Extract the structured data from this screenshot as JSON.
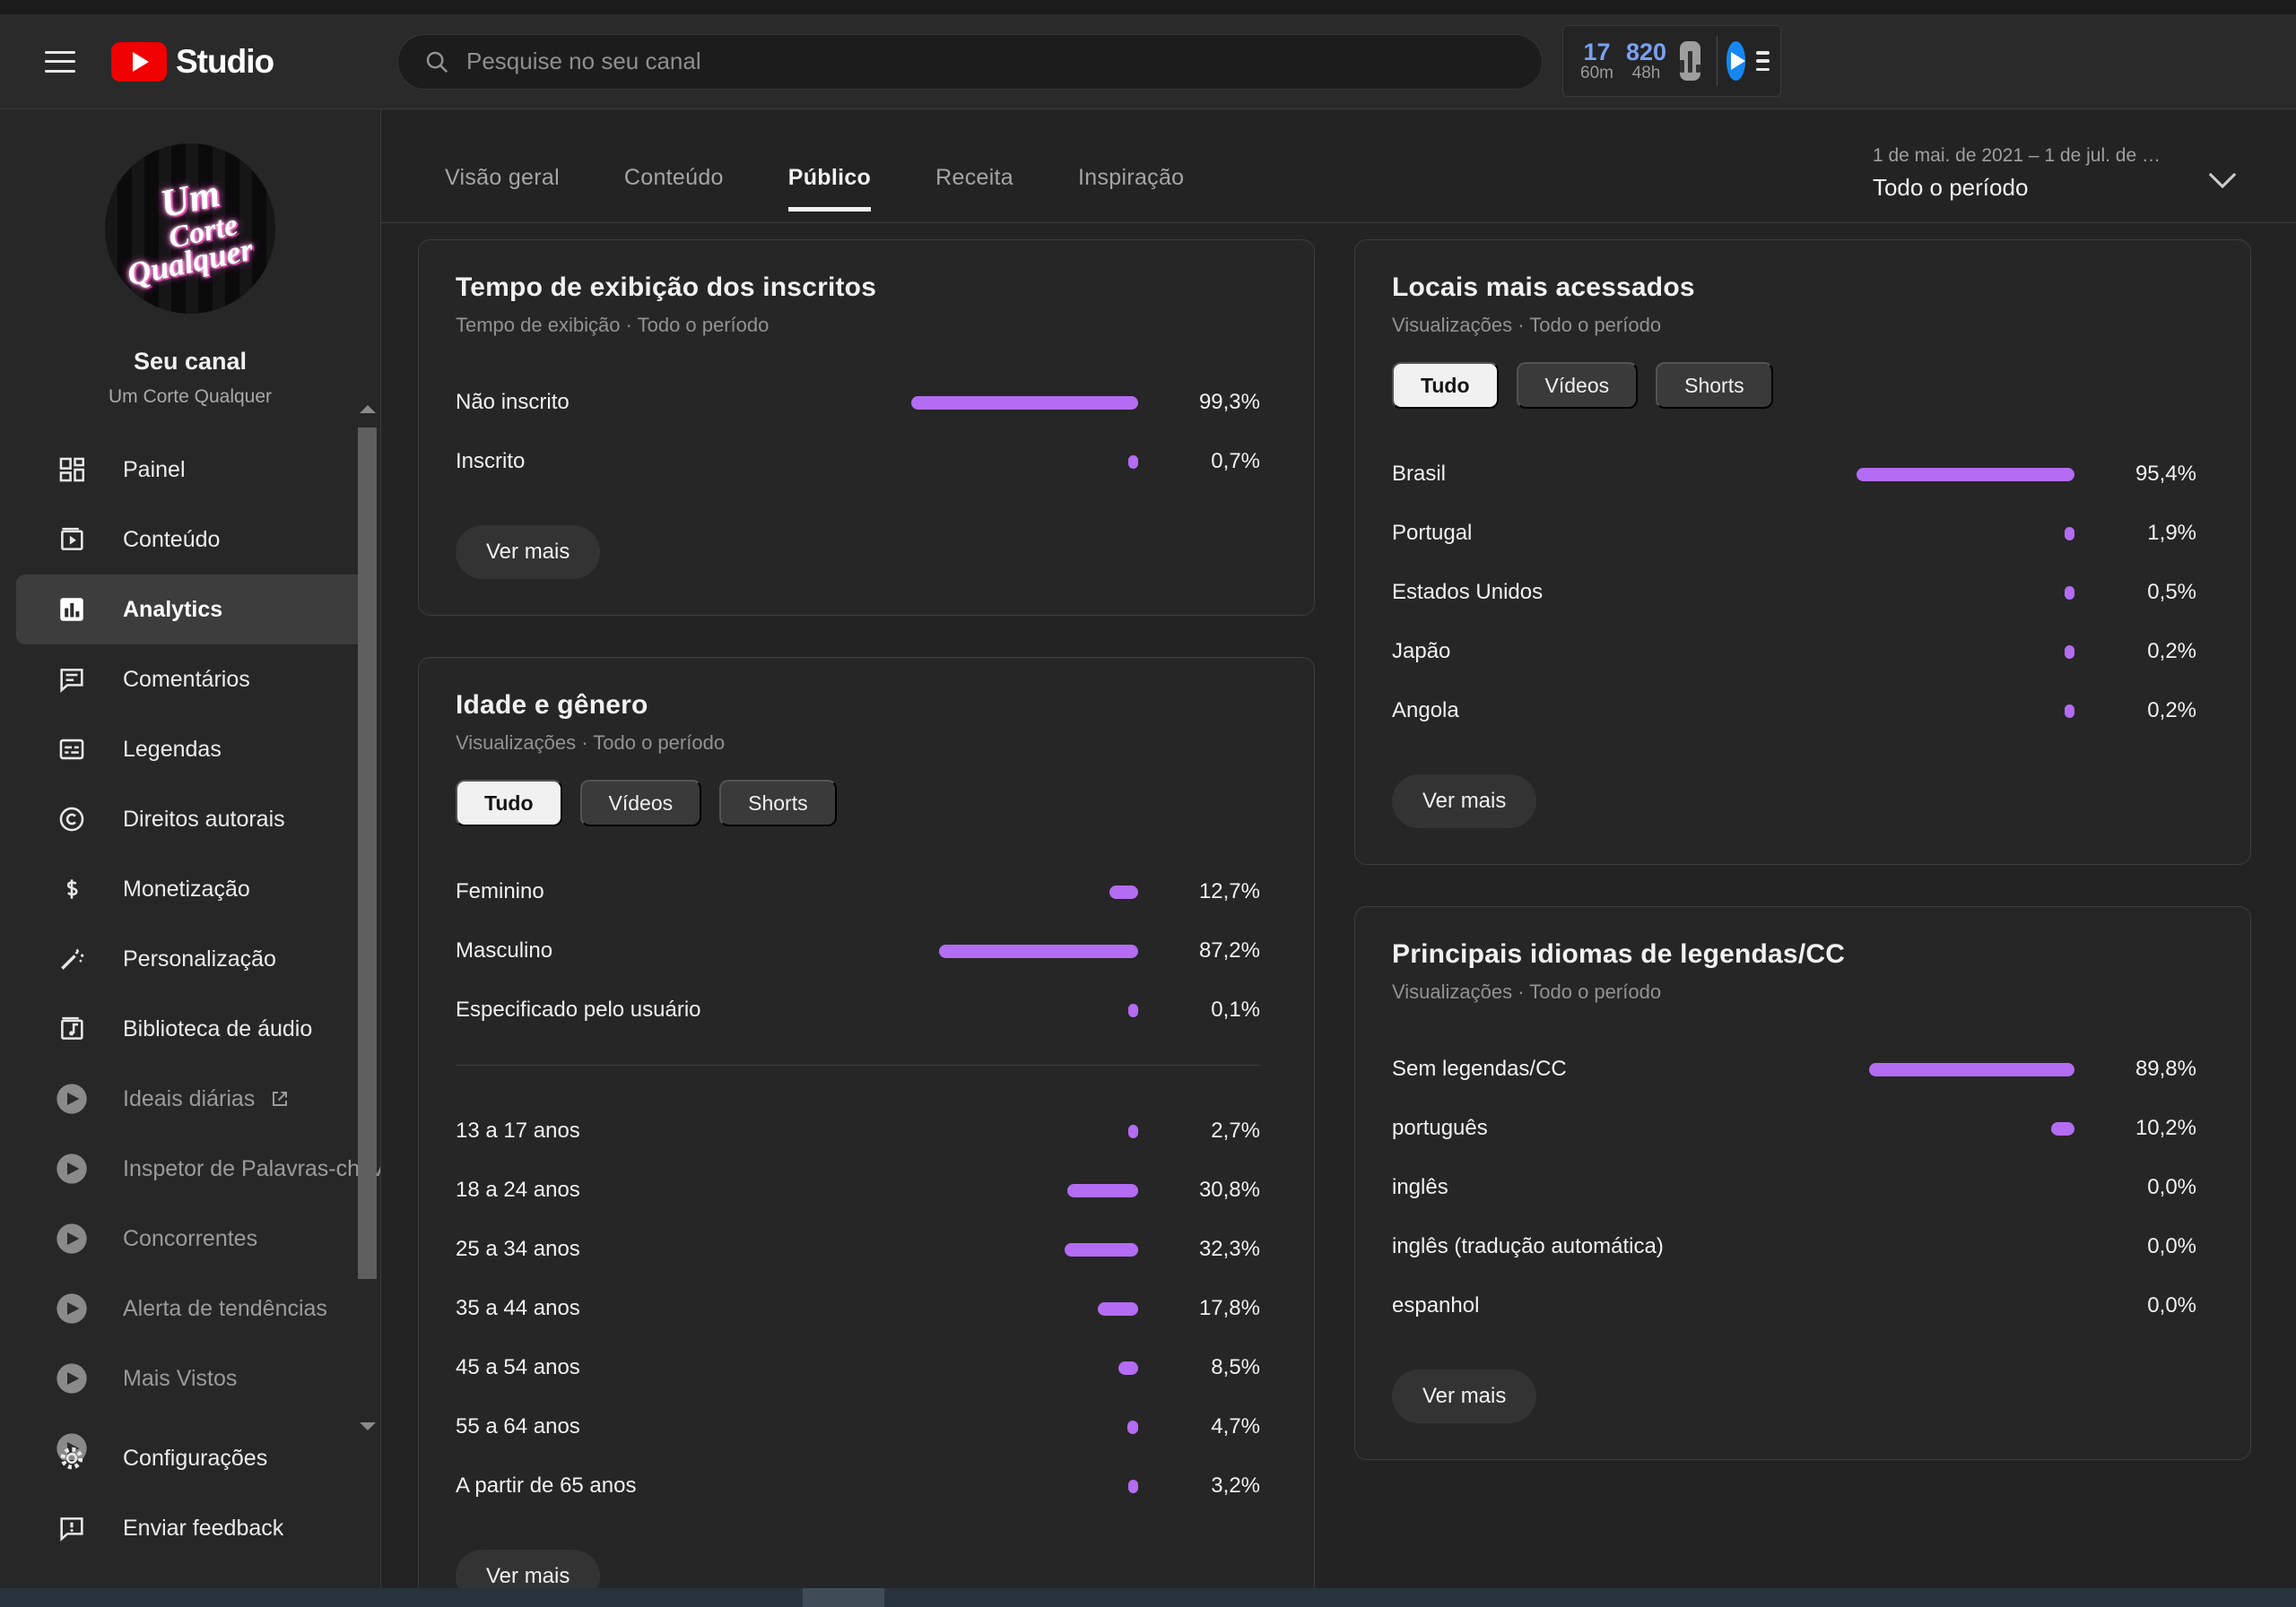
{
  "topbar": {
    "product_name": "Studio",
    "search": {
      "placeholder": "Pesquise no seu canal"
    },
    "vidiq_widget": {
      "stats": [
        {
          "value": "17",
          "label": "60m"
        },
        {
          "value": "820",
          "label": "48h"
        }
      ]
    }
  },
  "sidebar": {
    "avatar_lines": [
      "Um",
      "Corte",
      "Qualquer"
    ],
    "channel_title": "Seu canal",
    "channel_name": "Um Corte Qualquer",
    "items": [
      {
        "label": "Painel",
        "icon": "dashboard"
      },
      {
        "label": "Conteúdo",
        "icon": "content"
      },
      {
        "label": "Analytics",
        "icon": "analytics",
        "selected": true
      },
      {
        "label": "Comentários",
        "icon": "comments"
      },
      {
        "label": "Legendas",
        "icon": "captions"
      },
      {
        "label": "Direitos autorais",
        "icon": "copyright"
      },
      {
        "label": "Monetização",
        "icon": "monetization"
      },
      {
        "label": "Personalização",
        "icon": "customization"
      },
      {
        "label": "Biblioteca de áudio",
        "icon": "audio-library"
      },
      {
        "label": "Ideais diárias",
        "icon": "vidiq",
        "muted": true,
        "external": true
      },
      {
        "label": "Inspetor de Palavras-chave",
        "icon": "vidiq",
        "muted": true
      },
      {
        "label": "Concorrentes",
        "icon": "vidiq",
        "muted": true
      },
      {
        "label": "Alerta de tendências",
        "icon": "vidiq",
        "muted": true
      },
      {
        "label": "Mais Vistos",
        "icon": "vidiq",
        "muted": true
      },
      {
        "label": "",
        "icon": "vidiq",
        "muted": true,
        "clipped": true
      }
    ],
    "footer_items": [
      {
        "label": "Configurações",
        "icon": "settings"
      },
      {
        "label": "Enviar feedback",
        "icon": "feedback"
      }
    ]
  },
  "analytics_nav": {
    "tabs": [
      {
        "label": "Visão geral"
      },
      {
        "label": "Conteúdo"
      },
      {
        "label": "Público",
        "active": true
      },
      {
        "label": "Receita"
      },
      {
        "label": "Inspiração"
      }
    ],
    "date_filter": {
      "range": "1 de mai. de 2021 – 1 de jul. de …",
      "preset": "Todo o período"
    }
  },
  "colors": {
    "accent_purple": "#b36cf2",
    "vidiq_blue": "#1686f0",
    "youtube_red": "#f00000"
  },
  "cards": [
    {
      "id": "tempo-exibicao-inscritos",
      "column": "left",
      "title": "Tempo de exibição dos inscritos",
      "subtitle": "Tempo de exibição · Todo o período",
      "chips": null,
      "sections": [
        [
          {
            "label": "Não inscrito",
            "pct": 99.3,
            "value": "99,3%"
          },
          {
            "label": "Inscrito",
            "pct": 0.7,
            "value": "0,7%"
          }
        ]
      ],
      "action": "Ver mais"
    },
    {
      "id": "idade-genero",
      "column": "left",
      "title": "Idade e gênero",
      "subtitle": "Visualizações · Todo o período",
      "chips": [
        "Tudo",
        "Vídeos",
        "Shorts"
      ],
      "selected_chip": 0,
      "sections": [
        [
          {
            "label": "Feminino",
            "pct": 12.7,
            "value": "12,7%"
          },
          {
            "label": "Masculino",
            "pct": 87.2,
            "value": "87,2%"
          },
          {
            "label": "Especificado pelo usuário",
            "pct": 0.1,
            "value": "0,1%"
          }
        ],
        [
          {
            "label": "13 a 17 anos",
            "pct": 2.7,
            "value": "2,7%"
          },
          {
            "label": "18 a 24 anos",
            "pct": 30.8,
            "value": "30,8%"
          },
          {
            "label": "25 a 34 anos",
            "pct": 32.3,
            "value": "32,3%"
          },
          {
            "label": "35 a 44 anos",
            "pct": 17.8,
            "value": "17,8%"
          },
          {
            "label": "45 a 54 anos",
            "pct": 8.5,
            "value": "8,5%"
          },
          {
            "label": "55 a 64 anos",
            "pct": 4.7,
            "value": "4,7%"
          },
          {
            "label": "A partir de 65 anos",
            "pct": 3.2,
            "value": "3,2%"
          }
        ]
      ],
      "action": "Ver mais"
    },
    {
      "id": "locais-mais-acessados",
      "column": "right",
      "title": "Locais mais acessados",
      "subtitle": "Visualizações · Todo o período",
      "chips": [
        "Tudo",
        "Vídeos",
        "Shorts"
      ],
      "selected_chip": 0,
      "sections": [
        [
          {
            "label": "Brasil",
            "pct": 95.4,
            "value": "95,4%"
          },
          {
            "label": "Portugal",
            "pct": 1.9,
            "value": "1,9%"
          },
          {
            "label": "Estados Unidos",
            "pct": 0.5,
            "value": "0,5%"
          },
          {
            "label": "Japão",
            "pct": 0.2,
            "value": "0,2%"
          },
          {
            "label": "Angola",
            "pct": 0.2,
            "value": "0,2%"
          }
        ]
      ],
      "action": "Ver mais"
    },
    {
      "id": "principais-idiomas-legendas",
      "column": "right",
      "title": "Principais idiomas de legendas/CC",
      "subtitle": "Visualizações · Todo o período",
      "chips": null,
      "sections": [
        [
          {
            "label": "Sem legendas/CC",
            "pct": 89.8,
            "value": "89,8%"
          },
          {
            "label": "português",
            "pct": 10.2,
            "value": "10,2%"
          },
          {
            "label": "inglês",
            "pct": 0.0,
            "value": "0,0%"
          },
          {
            "label": "inglês (tradução automática)",
            "pct": 0.0,
            "value": "0,0%"
          },
          {
            "label": "espanhol",
            "pct": 0.0,
            "value": "0,0%"
          }
        ]
      ],
      "action": "Ver mais"
    }
  ]
}
